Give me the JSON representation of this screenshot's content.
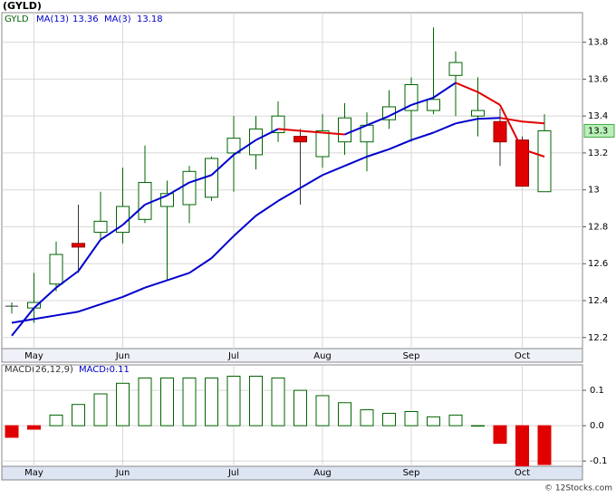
{
  "chart_data": [
    {
      "type": "candlestick",
      "title": "(GYLD)",
      "symbol": "GYLD",
      "categories": [
        null,
        "May",
        null,
        null,
        null,
        "Jun",
        null,
        null,
        null,
        null,
        "Jul",
        null,
        null,
        null,
        "Aug",
        null,
        null,
        null,
        "Sep",
        null,
        null,
        null,
        null,
        "Oct",
        null
      ],
      "open": [
        12.37,
        12.36,
        12.49,
        12.71,
        12.77,
        12.77,
        12.84,
        12.91,
        12.92,
        12.96,
        13.2,
        13.19,
        13.31,
        13.29,
        13.18,
        13.26,
        13.26,
        13.38,
        13.43,
        13.43,
        13.62,
        13.4,
        13.37,
        13.27,
        12.99
      ],
      "high": [
        12.39,
        12.55,
        12.72,
        12.92,
        12.99,
        13.12,
        13.24,
        13.05,
        13.13,
        13.18,
        13.4,
        13.4,
        13.48,
        13.33,
        13.41,
        13.47,
        13.42,
        13.54,
        13.61,
        13.88,
        13.75,
        13.61,
        13.44,
        13.29,
        13.41
      ],
      "low": [
        12.33,
        12.28,
        12.45,
        12.55,
        12.73,
        12.71,
        12.82,
        12.51,
        12.82,
        12.94,
        12.99,
        13.11,
        13.26,
        12.92,
        13.12,
        13.19,
        13.1,
        13.33,
        13.26,
        13.41,
        13.4,
        13.29,
        13.13,
        13.02,
        12.99
      ],
      "close": [
        12.37,
        12.39,
        12.65,
        12.69,
        12.83,
        12.91,
        13.04,
        12.98,
        13.1,
        13.17,
        13.28,
        13.33,
        13.4,
        13.26,
        13.32,
        13.39,
        13.35,
        13.45,
        13.57,
        13.49,
        13.69,
        13.43,
        13.26,
        13.02,
        13.32
      ],
      "up_color": "#006400",
      "down_color": "#e00000",
      "series": [
        {
          "name": "MA(13)",
          "color": "#0000cc",
          "down_color": "#e00000",
          "values": [
            12.28,
            12.3,
            12.32,
            12.34,
            12.38,
            12.42,
            12.47,
            12.51,
            12.55,
            12.63,
            12.75,
            12.86,
            12.94,
            13.01,
            13.08,
            13.13,
            13.18,
            13.22,
            13.27,
            13.31,
            13.36,
            13.385,
            13.39,
            13.37,
            13.36
          ]
        },
        {
          "name": "MA(3)",
          "color": "#0000cc",
          "down_color": "#e00000",
          "values": [
            12.21,
            12.36,
            12.47,
            12.56,
            12.73,
            12.81,
            12.92,
            12.97,
            13.04,
            13.08,
            13.19,
            13.27,
            13.33,
            13.32,
            13.31,
            13.3,
            13.35,
            13.4,
            13.46,
            13.5,
            13.58,
            13.53,
            13.46,
            13.22,
            13.18
          ]
        }
      ],
      "price_label": "13.3",
      "ylim": [
        12.14,
        13.96
      ],
      "yticks": [
        12.2,
        12.4,
        12.6,
        12.8,
        13.0,
        13.2,
        13.4,
        13.6,
        13.8
      ],
      "grid": true
    },
    {
      "type": "bar",
      "title": "MACD(26,12,9)",
      "series": [
        {
          "name": "MACD:",
          "color": "#006400",
          "negative_color": "#e00000",
          "values": [
            -0.033,
            -0.01,
            0.03,
            0.06,
            0.09,
            0.12,
            0.135,
            0.135,
            0.135,
            0.135,
            0.14,
            0.14,
            0.135,
            0.1,
            0.085,
            0.065,
            0.045,
            0.035,
            0.04,
            0.025,
            0.03,
            0.0,
            -0.05,
            -0.12,
            -0.11
          ]
        }
      ],
      "ylim": [
        -0.115,
        0.172
      ],
      "yticks": [
        -0.1,
        {
          "value": 0,
          "label": "0.0"
        },
        0.1
      ],
      "grid": true
    }
  ],
  "footer": "© 12Stocks.com"
}
